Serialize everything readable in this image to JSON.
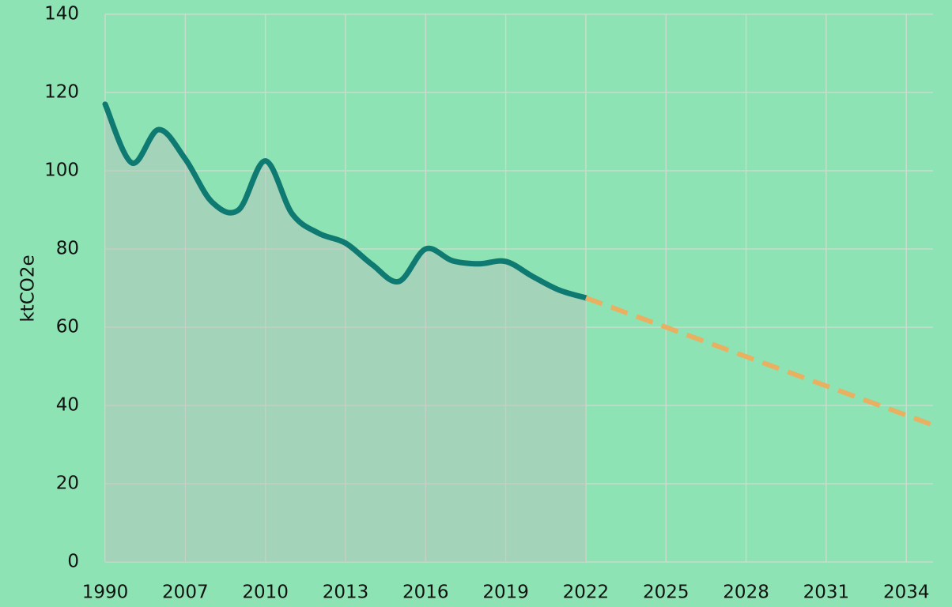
{
  "chart_data": {
    "type": "line",
    "y_label": "ktCO2e",
    "categories": [
      "1990",
      null,
      null,
      "2007",
      null,
      null,
      "2010",
      null,
      null,
      "2013",
      null,
      null,
      "2016",
      null,
      null,
      "2019",
      null,
      null,
      "2022",
      null,
      null,
      "2025",
      null,
      null,
      "2028",
      null,
      null,
      "2031",
      null,
      null,
      "2034",
      null
    ],
    "series": [
      {
        "color": "#0f7a72",
        "area": true,
        "dashed": false,
        "values": [
          117,
          102,
          110.5,
          103,
          92,
          90,
          102.5,
          89,
          84,
          81.5,
          76,
          71.7,
          80,
          77,
          76.2,
          76.8,
          73,
          69.5,
          67.5,
          null,
          null,
          null,
          null,
          null,
          null,
          null,
          null,
          null,
          null,
          null,
          null,
          null
        ]
      },
      {
        "color": "#e8b060",
        "area": false,
        "dashed": true,
        "values": [
          null,
          null,
          null,
          null,
          null,
          null,
          null,
          null,
          null,
          null,
          null,
          null,
          null,
          null,
          null,
          null,
          null,
          null,
          67.5,
          65,
          62.5,
          60,
          57.5,
          55,
          52.5,
          50,
          47.5,
          45,
          42.5,
          40,
          37.5,
          35
        ]
      }
    ],
    "ylim": [
      0,
      140
    ],
    "yticks": [
      0,
      20,
      40,
      60,
      80,
      100,
      120,
      140
    ],
    "grid": true
  }
}
